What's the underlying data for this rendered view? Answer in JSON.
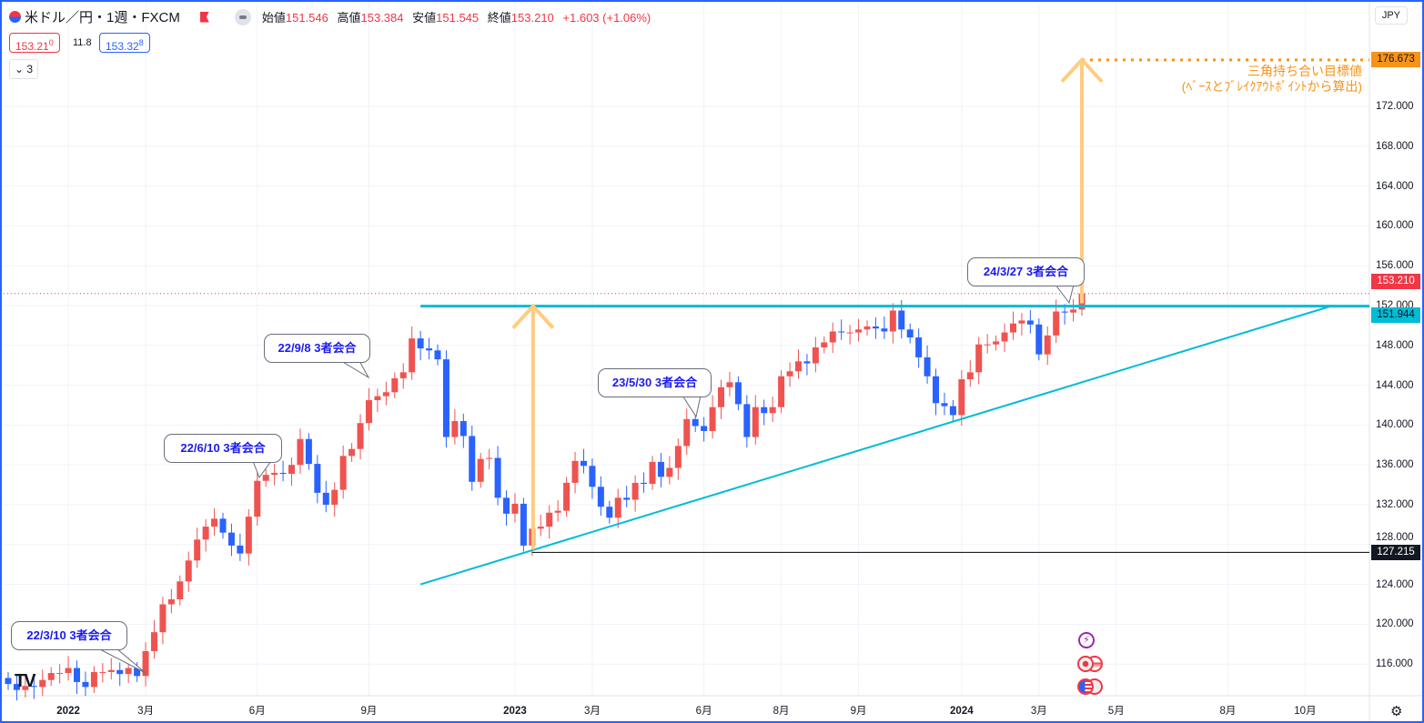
{
  "header": {
    "symbol": "米ドル／円・1週・FXCM",
    "open_label": "始値",
    "open": "151.546",
    "high_label": "高値",
    "high": "153.384",
    "low_label": "安値",
    "low": "151.545",
    "close_label": "終値",
    "close": "153.210",
    "change": "+1.603 (+1.06%)",
    "sell_price": "153.21",
    "sell_sup": "0",
    "spread": "11.8",
    "buy_price": "153.32",
    "buy_sup": "8",
    "indicators_collapsed": "3",
    "currency": "JPY"
  },
  "colors": {
    "up": "#ef5350",
    "down": "#2962ff",
    "trend": "#00bcd4",
    "target": "#f7931a",
    "arrow": "#ffcc80"
  },
  "chart_data": {
    "type": "candlestick",
    "title": "米ドル／円・1週・FXCM",
    "interval": "weekly",
    "first_week": "2021-11-15",
    "first_open": 114.6,
    "closes": [
      114.0,
      113.4,
      113.8,
      113.7,
      114.4,
      115.1,
      115.1,
      115.6,
      114.2,
      113.7,
      115.2,
      115.2,
      115.4,
      115.0,
      115.6,
      114.8,
      117.3,
      119.2,
      122.0,
      122.5,
      124.3,
      126.4,
      128.5,
      129.8,
      130.6,
      129.2,
      127.9,
      127.1,
      130.8,
      134.4,
      135.0,
      135.2,
      135.1,
      136.0,
      138.6,
      136.1,
      133.2,
      132.0,
      133.5,
      136.9,
      137.6,
      140.2,
      142.5,
      142.9,
      143.3,
      144.7,
      145.3,
      148.7,
      147.7,
      147.5,
      146.6,
      138.8,
      140.4,
      138.9,
      134.3,
      136.6,
      136.7,
      132.7,
      131.1,
      132.1,
      127.9,
      129.6,
      129.8,
      131.2,
      131.4,
      134.2,
      136.4,
      135.9,
      133.8,
      131.8,
      130.7,
      132.7,
      132.5,
      134.2,
      134.1,
      136.3,
      134.8,
      135.7,
      137.9,
      140.6,
      139.9,
      139.4,
      141.8,
      143.8,
      144.3,
      142.1,
      138.8,
      141.8,
      141.2,
      141.8,
      144.9,
      145.4,
      146.4,
      146.2,
      147.8,
      148.3,
      149.4,
      149.3,
      149.3,
      149.6,
      149.9,
      149.7,
      149.4,
      151.5,
      149.6,
      148.8,
      146.8,
      144.9,
      142.2,
      141.9,
      141.0,
      144.6,
      145.3,
      148.1,
      148.1,
      148.4,
      149.3,
      150.2,
      150.5,
      150.1,
      147.1,
      149.0,
      151.4,
      151.3,
      151.6,
      153.21
    ],
    "ylim": [
      112,
      180
    ],
    "y_ticks": [
      "172.000",
      "168.000",
      "164.000",
      "160.000",
      "156.000",
      "152.000",
      "148.000",
      "144.000",
      "140.000",
      "136.000",
      "132.000",
      "128.000",
      "124.000",
      "120.000",
      "116.000"
    ],
    "x_ticks": [
      {
        "label": "2022",
        "week": 7,
        "bold": true
      },
      {
        "label": "3月",
        "week": 16
      },
      {
        "label": "6月",
        "week": 29
      },
      {
        "label": "9月",
        "week": 42
      },
      {
        "label": "2023",
        "week": 59,
        "bold": true
      },
      {
        "label": "3月",
        "week": 68
      },
      {
        "label": "6月",
        "week": 81
      },
      {
        "label": "8月",
        "week": 90
      },
      {
        "label": "9月",
        "week": 99
      },
      {
        "label": "2024",
        "week": 111,
        "bold": true
      },
      {
        "label": "3月",
        "week": 120
      },
      {
        "label": "5月",
        "week": 129
      },
      {
        "label": "8月",
        "week": 142
      },
      {
        "label": "10月",
        "week": 151
      }
    ],
    "levels": {
      "target": "176.673",
      "last": "153.210",
      "resistance": "151.944",
      "support": "127.215"
    },
    "trendline": {
      "from_week": 48,
      "from_price": 124.0,
      "to_week": 154,
      "to_price": 151.944
    },
    "annotations": [
      {
        "text": "22/3/10 3者会合",
        "week": 16
      },
      {
        "text": "22/6/10 3者会合",
        "week": 29
      },
      {
        "text": "22/9/8 3者会合",
        "week": 42
      },
      {
        "text": "23/5/30 3者会合",
        "week": 80
      },
      {
        "text": "24/3/27 3者会合",
        "week": 123
      }
    ],
    "target_note": [
      "三角持ち合い目標値",
      "(ﾍﾞｰｽとﾌﾞﾚｲｸｱｳﾄﾎﾟｲﾝﾄから算出)"
    ]
  }
}
